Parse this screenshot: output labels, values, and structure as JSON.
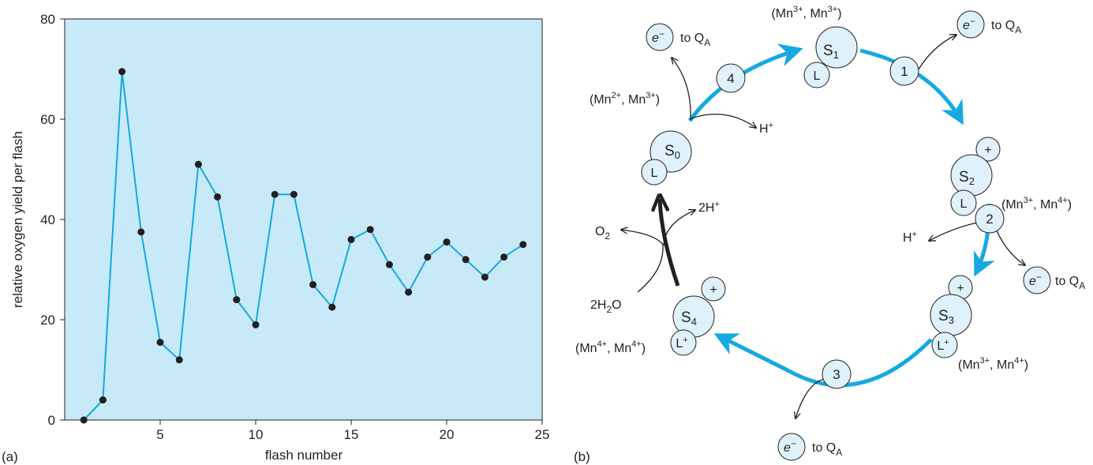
{
  "panel_a_label": "(a)",
  "panel_b_label": "(b)",
  "colors": {
    "plot_bg": "#c8e9f8",
    "line": "#14a9e0",
    "point": "#231f20",
    "arrow": "#231f20",
    "cycle": "#14a9e0",
    "node_fill": "#dff1fa"
  },
  "chart_data": {
    "type": "line",
    "title": "",
    "xlabel": "flash number",
    "ylabel": "relative oxygen yield per flash",
    "xlim": [
      0,
      25
    ],
    "ylim": [
      0,
      80
    ],
    "xticks": [
      5,
      10,
      15,
      20,
      25
    ],
    "yticks": [
      0,
      20,
      40,
      60,
      80
    ],
    "grid": false,
    "x": [
      1,
      2,
      3,
      4,
      5,
      6,
      7,
      8,
      9,
      10,
      11,
      12,
      13,
      14,
      15,
      16,
      17,
      18,
      19,
      20,
      21,
      22,
      23,
      24
    ],
    "y": [
      0,
      4,
      69.5,
      37.5,
      15.5,
      12,
      51,
      44.5,
      24,
      19,
      45,
      45,
      27,
      22.5,
      36,
      38,
      31,
      25.5,
      32.5,
      35.5,
      32,
      28.5,
      32.5,
      35
    ]
  },
  "diagram": {
    "states": [
      {
        "id": "S0",
        "main": "S",
        "sub": "0",
        "ox": "L",
        "ox_sup": "",
        "charge": "",
        "mn_a": "Mn",
        "mn_a_sup": "2+",
        "sep": ", ",
        "mn_b": "Mn",
        "mn_b_sup": "3+"
      },
      {
        "id": "S1",
        "main": "S",
        "sub": "1",
        "ox": "L",
        "ox_sup": "",
        "charge": "",
        "mn_a": "Mn",
        "mn_a_sup": "3+",
        "sep": ", ",
        "mn_b": "Mn",
        "mn_b_sup": "3+"
      },
      {
        "id": "S2",
        "main": "S",
        "sub": "2",
        "ox": "L",
        "ox_sup": "",
        "charge": "+",
        "mn_a": "Mn",
        "mn_a_sup": "3+",
        "sep": ", ",
        "mn_b": "Mn",
        "mn_b_sup": "4+"
      },
      {
        "id": "S3",
        "main": "S",
        "sub": "3",
        "ox": "L",
        "ox_sup": "+",
        "charge": "+",
        "mn_a": "Mn",
        "mn_a_sup": "3+",
        "sep": ", ",
        "mn_b": "Mn",
        "mn_b_sup": "4+"
      },
      {
        "id": "S4",
        "main": "S",
        "sub": "4",
        "ox": "L",
        "ox_sup": "+",
        "charge": "+",
        "mn_a": "Mn",
        "mn_a_sup": "4+",
        "sep": ", ",
        "mn_b": "Mn",
        "mn_b_sup": "4+"
      }
    ],
    "steps": [
      "1",
      "2",
      "3",
      "4"
    ],
    "electron": {
      "symbol": "e",
      "sup": "−",
      "to": "to Q",
      "to_sub": "A"
    },
    "proton_h": "H",
    "proton_sup": "+",
    "two_h": "2H",
    "two_h_sup": "+",
    "o2": "O",
    "o2_sub": "2",
    "water_pre": "2H",
    "water_sub": "2",
    "water_post": "O",
    "paren_open": "(",
    "paren_close": ")"
  }
}
